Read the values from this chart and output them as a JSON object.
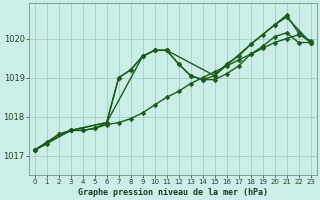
{
  "title": "Graphe pression niveau de la mer (hPa)",
  "background_color": "#cceee8",
  "grid_color": "#aaccbb",
  "line_color": "#1a5c1a",
  "marker": "D",
  "marker_size": 2.5,
  "linewidth": 1.0,
  "xlim": [
    -0.5,
    23.5
  ],
  "ylim": [
    1016.5,
    1020.9
  ],
  "yticks": [
    1017,
    1018,
    1019,
    1020
  ],
  "xticks": [
    0,
    1,
    2,
    3,
    4,
    5,
    6,
    7,
    8,
    9,
    10,
    11,
    12,
    13,
    14,
    15,
    16,
    17,
    18,
    19,
    20,
    21,
    22,
    23
  ],
  "series": [
    {
      "x": [
        0,
        1,
        2,
        3,
        4,
        5,
        6,
        7,
        8,
        9,
        10,
        11,
        12,
        13,
        14,
        15,
        16,
        17,
        18,
        19,
        20,
        21,
        22,
        23
      ],
      "y": [
        1017.15,
        1017.3,
        1017.55,
        1017.65,
        1017.65,
        1017.7,
        1017.8,
        1017.85,
        1017.95,
        1018.1,
        1018.3,
        1018.5,
        1018.65,
        1018.85,
        1019.0,
        1019.15,
        1019.3,
        1019.45,
        1019.6,
        1019.75,
        1019.9,
        1020.0,
        1020.1,
        1019.95
      ]
    },
    {
      "x": [
        0,
        1,
        2,
        3,
        4,
        5,
        6,
        7,
        8,
        9,
        10,
        11,
        12,
        13,
        14,
        15,
        16,
        17,
        18,
        19,
        20,
        21,
        22,
        23
      ],
      "y": [
        1017.15,
        1017.35,
        1017.55,
        1017.65,
        1017.65,
        1017.7,
        1017.85,
        1019.0,
        1019.2,
        1019.55,
        1019.7,
        1019.7,
        1019.35,
        1019.05,
        1018.95,
        1018.95,
        1019.1,
        1019.3,
        1019.6,
        1019.8,
        1020.05,
        1020.15,
        1019.9,
        1019.9
      ]
    },
    {
      "x": [
        0,
        3,
        6,
        9,
        10,
        11,
        12,
        13,
        14,
        15,
        16,
        17,
        18,
        19,
        20,
        21,
        23
      ],
      "y": [
        1017.15,
        1017.65,
        1017.85,
        1019.55,
        1019.7,
        1019.7,
        1019.35,
        1019.05,
        1018.95,
        1019.05,
        1019.35,
        1019.55,
        1019.85,
        1020.1,
        1020.35,
        1020.55,
        1019.9
      ]
    },
    {
      "x": [
        0,
        3,
        6,
        7,
        8,
        9,
        10,
        11,
        15,
        18,
        20,
        21,
        22,
        23
      ],
      "y": [
        1017.15,
        1017.65,
        1017.85,
        1019.0,
        1019.2,
        1019.55,
        1019.7,
        1019.7,
        1019.05,
        1019.85,
        1020.35,
        1020.6,
        1020.15,
        1019.9
      ]
    }
  ]
}
